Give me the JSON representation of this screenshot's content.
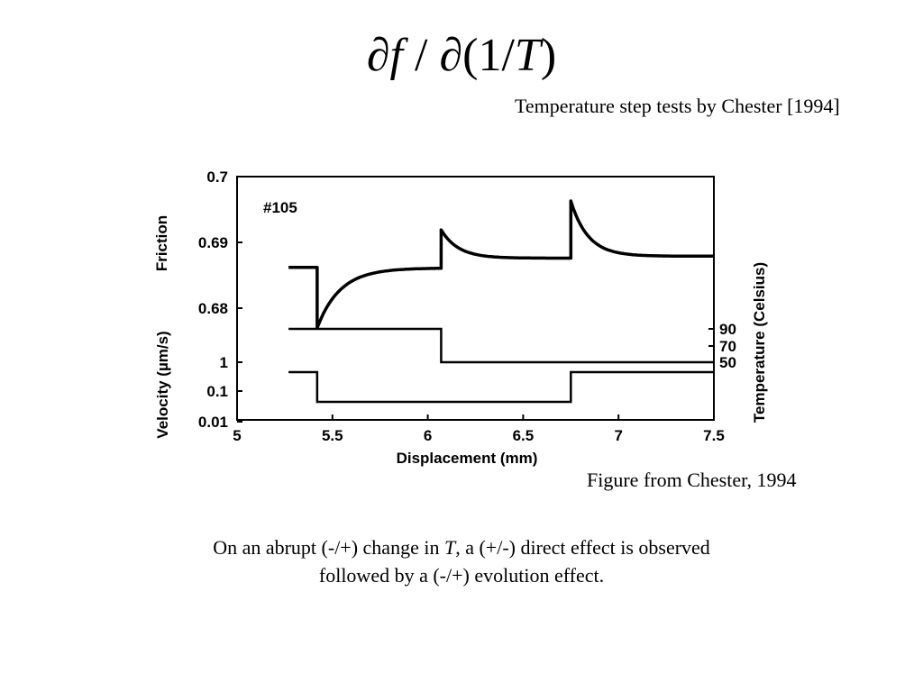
{
  "slide": {
    "title": {
      "pre": "∂",
      "f": "f",
      "mid": " / ∂(1/",
      "T": "T",
      "post": ")"
    },
    "subtitle": "Temperature step tests by Chester [1994]",
    "caption": "Figure from Chester, 1994",
    "body": {
      "line1_a": "On an abrupt  (-/+) change in ",
      "line1_T": "T",
      "line1_b": ", a (+/-) direct effect is observed",
      "line2": "followed by a (-/+) evolution effect."
    }
  },
  "chart_data": {
    "type": "line",
    "annotation": "#105",
    "xlabel": "Displacement (mm)",
    "xlim": [
      5,
      7.5
    ],
    "xticks": [
      "5",
      "5.5",
      "6",
      "6.5",
      "7",
      "7.5"
    ],
    "friction_axis": {
      "label": "Friction",
      "ylim": [
        0.67,
        0.7
      ],
      "ticks": [
        "0.7",
        "0.69",
        "0.68"
      ]
    },
    "velocity_axis": {
      "label": "Velocity (µm/s)",
      "ticks": [
        "1",
        "0.1",
        "0.01"
      ]
    },
    "temperature_axis": {
      "label": "Temperature (Celsius)",
      "ticks": [
        "90",
        "70",
        "50"
      ]
    },
    "friction_series": {
      "steps": [
        {
          "x_start": 5.27,
          "x_end": 5.42,
          "level": 0.6862
        },
        {
          "x_start": 5.42,
          "x_end": 6.07,
          "peak": 0.677,
          "steady": 0.6861
        },
        {
          "x_start": 6.07,
          "x_end": 6.75,
          "peak": 0.6919,
          "steady": 0.6876
        },
        {
          "x_start": 6.75,
          "x_end": 7.5,
          "peak": 0.6963,
          "steady": 0.6879
        }
      ]
    },
    "temperature_series": [
      {
        "x_start": 5.27,
        "x_end": 6.07,
        "temperature": 90
      },
      {
        "x_start": 6.07,
        "x_end": 7.5,
        "temperature": 50
      }
    ],
    "velocity_series": [
      {
        "x_start": 5.27,
        "x_end": 5.42,
        "velocity": 1
      },
      {
        "x_start": 5.42,
        "x_end": 6.75,
        "velocity": 0.01
      },
      {
        "x_start": 6.75,
        "x_end": 7.5,
        "velocity": 1
      }
    ]
  }
}
